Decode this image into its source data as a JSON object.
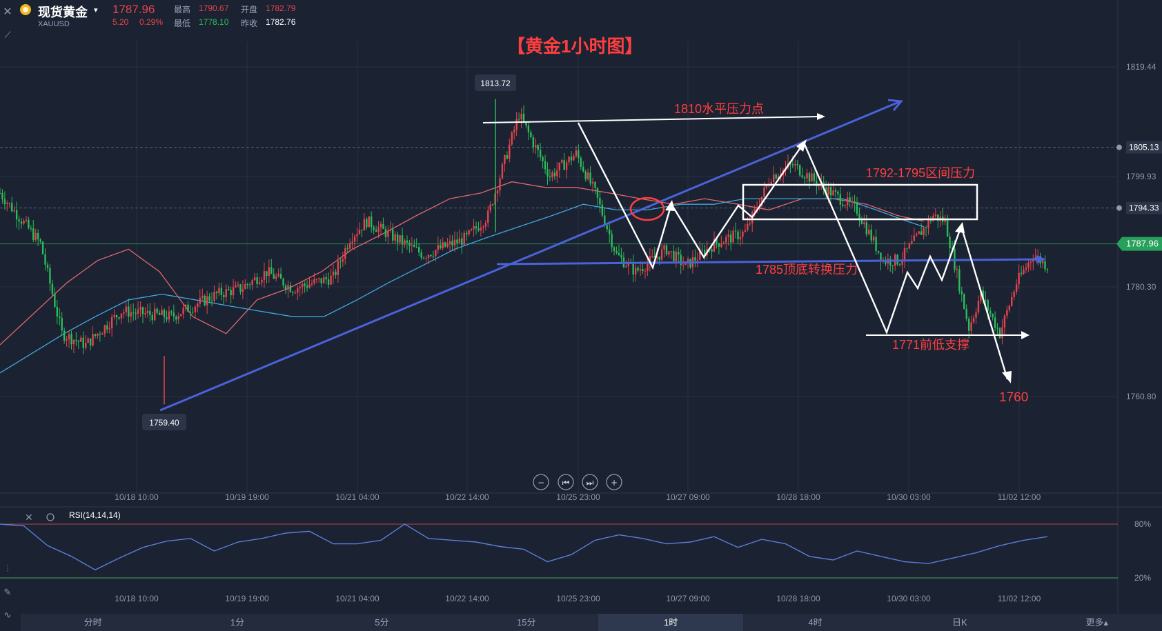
{
  "header": {
    "instrument_name": "现货黄金",
    "symbol": "XAUUSD",
    "last_price": "1787.96",
    "change": "5.20",
    "change_pct": "0.29%",
    "high_label": "最高",
    "high_value": "1790.67",
    "open_label": "开盘",
    "open_value": "1782.79",
    "low_label": "最低",
    "low_value": "1778.10",
    "prev_close_label": "昨收",
    "prev_close_value": "1782.76"
  },
  "chart_title": "【黄金1小时图】",
  "chart_data": {
    "type": "candlestick",
    "x_axis": {
      "ticks": [
        "10/18 10:00",
        "10/19 19:00",
        "10/21 04:00",
        "10/22 14:00",
        "10/25 23:00",
        "10/27 09:00",
        "10/28 18:00",
        "10/30 03:00",
        "11/02 12:00"
      ]
    },
    "y_axis": {
      "range": [
        1752.5,
        1824
      ],
      "ticks": [
        1819.44,
        1799.93,
        1780.3,
        1760.8
      ]
    },
    "price_tags": [
      "1805.13",
      "1794.33"
    ],
    "current_price_tag": "1787.96",
    "high_marker": {
      "label": "1813.72",
      "value": 1813.72
    },
    "low_marker": {
      "label": "1759.40",
      "value": 1759.4
    },
    "hist_axis_points": [
      [
        0,
        1797
      ],
      [
        17,
        1788
      ],
      [
        26,
        1772
      ],
      [
        36,
        1770
      ],
      [
        51,
        1776
      ],
      [
        72,
        1775
      ],
      [
        91,
        1779
      ],
      [
        101,
        1780
      ],
      [
        112,
        1783
      ],
      [
        123,
        1780
      ],
      [
        140,
        1782
      ],
      [
        147,
        1789
      ],
      [
        154,
        1792
      ],
      [
        178,
        1786
      ],
      [
        196,
        1789
      ],
      [
        205,
        1793
      ],
      [
        218,
        1811
      ],
      [
        231,
        1800
      ],
      [
        242,
        1804
      ],
      [
        250,
        1797
      ],
      [
        259,
        1786
      ],
      [
        267,
        1783
      ],
      [
        280,
        1787
      ],
      [
        288,
        1784
      ],
      [
        300,
        1788
      ],
      [
        313,
        1790
      ],
      [
        324,
        1800
      ],
      [
        333,
        1802
      ],
      [
        346,
        1798
      ],
      [
        360,
        1794
      ],
      [
        371,
        1785
      ],
      [
        378,
        1785
      ],
      [
        392,
        1793
      ],
      [
        397,
        1792
      ],
      [
        407,
        1773
      ],
      [
        412,
        1779
      ],
      [
        420,
        1772
      ],
      [
        427,
        1781
      ],
      [
        434,
        1786
      ],
      [
        440,
        1784
      ]
    ],
    "ma_red": [
      [
        0,
        1770
      ],
      [
        28,
        1781
      ],
      [
        41,
        1785
      ],
      [
        54,
        1787
      ],
      [
        67,
        1783
      ],
      [
        81,
        1775
      ],
      [
        95,
        1772
      ],
      [
        108,
        1778
      ],
      [
        121,
        1780
      ],
      [
        135,
        1783
      ],
      [
        148,
        1787
      ],
      [
        162,
        1790
      ],
      [
        175,
        1793
      ],
      [
        189,
        1796
      ],
      [
        202,
        1797
      ],
      [
        215,
        1799
      ],
      [
        229,
        1798
      ],
      [
        242,
        1798
      ],
      [
        256,
        1797
      ],
      [
        269,
        1796
      ],
      [
        283,
        1795
      ],
      [
        296,
        1796
      ],
      [
        310,
        1795
      ],
      [
        323,
        1794
      ],
      [
        337,
        1796
      ],
      [
        350,
        1796
      ],
      [
        364,
        1795
      ],
      [
        377,
        1793
      ],
      [
        388,
        1792
      ]
    ],
    "ma_blue": [
      [
        0,
        1765
      ],
      [
        27,
        1772
      ],
      [
        40,
        1775
      ],
      [
        54,
        1778
      ],
      [
        68,
        1779
      ],
      [
        82,
        1778
      ],
      [
        95,
        1777
      ],
      [
        109,
        1776
      ],
      [
        123,
        1775
      ],
      [
        136,
        1775
      ],
      [
        150,
        1778
      ],
      [
        163,
        1781
      ],
      [
        177,
        1784
      ],
      [
        191,
        1787
      ],
      [
        204,
        1789
      ],
      [
        218,
        1791
      ],
      [
        232,
        1793
      ],
      [
        245,
        1795
      ],
      [
        259,
        1794
      ],
      [
        272,
        1794
      ],
      [
        286,
        1795
      ],
      [
        300,
        1795
      ],
      [
        313,
        1796
      ],
      [
        327,
        1796
      ],
      [
        340,
        1796
      ],
      [
        354,
        1796
      ],
      [
        368,
        1794
      ],
      [
        381,
        1792
      ],
      [
        388,
        1791
      ]
    ],
    "annotations": [
      "1810水平压力点",
      "1792-1795区间压力",
      "1785顶底转换压力",
      "1771前低支撑",
      "1760"
    ],
    "rsi": {
      "label": "RSI(14,14,14)",
      "levels": [
        80,
        20
      ],
      "level_labels": [
        "80%",
        "20%"
      ],
      "range": [
        10,
        90
      ],
      "series": [
        [
          0,
          80
        ],
        [
          10,
          78
        ],
        [
          20,
          56
        ],
        [
          30,
          44
        ],
        [
          40,
          29
        ],
        [
          50,
          42
        ],
        [
          60,
          54
        ],
        [
          70,
          61
        ],
        [
          80,
          64
        ],
        [
          90,
          50
        ],
        [
          100,
          60
        ],
        [
          110,
          64
        ],
        [
          120,
          70
        ],
        [
          130,
          72
        ],
        [
          140,
          58
        ],
        [
          150,
          58
        ],
        [
          160,
          62
        ],
        [
          170,
          80
        ],
        [
          180,
          64
        ],
        [
          190,
          62
        ],
        [
          200,
          60
        ],
        [
          210,
          55
        ],
        [
          220,
          52
        ],
        [
          230,
          38
        ],
        [
          240,
          46
        ],
        [
          250,
          62
        ],
        [
          260,
          68
        ],
        [
          270,
          64
        ],
        [
          280,
          58
        ],
        [
          290,
          60
        ],
        [
          300,
          66
        ],
        [
          310,
          54
        ],
        [
          320,
          63
        ],
        [
          330,
          58
        ],
        [
          340,
          44
        ],
        [
          350,
          40
        ],
        [
          360,
          50
        ],
        [
          370,
          44
        ],
        [
          380,
          38
        ],
        [
          390,
          36
        ],
        [
          400,
          42
        ],
        [
          410,
          48
        ],
        [
          420,
          56
        ],
        [
          430,
          62
        ],
        [
          440,
          66
        ]
      ]
    }
  },
  "timeframes": {
    "items": [
      "分时",
      "1分",
      "5分",
      "15分",
      "1时",
      "4时",
      "日K",
      "更多▴"
    ],
    "active": "1时"
  },
  "colors": {
    "background": "#1b2232",
    "grid": "#283044",
    "up_candle": "#e6444c",
    "down_candle": "#2bbd59",
    "annotation_red": "#ff3f3f",
    "trend_blue": "#4a63d8",
    "ma_red": "#e0676f",
    "ma_blue": "#3fa8e0",
    "rsi_line": "#5b7ed8",
    "current_price_green": "#27a05a"
  }
}
